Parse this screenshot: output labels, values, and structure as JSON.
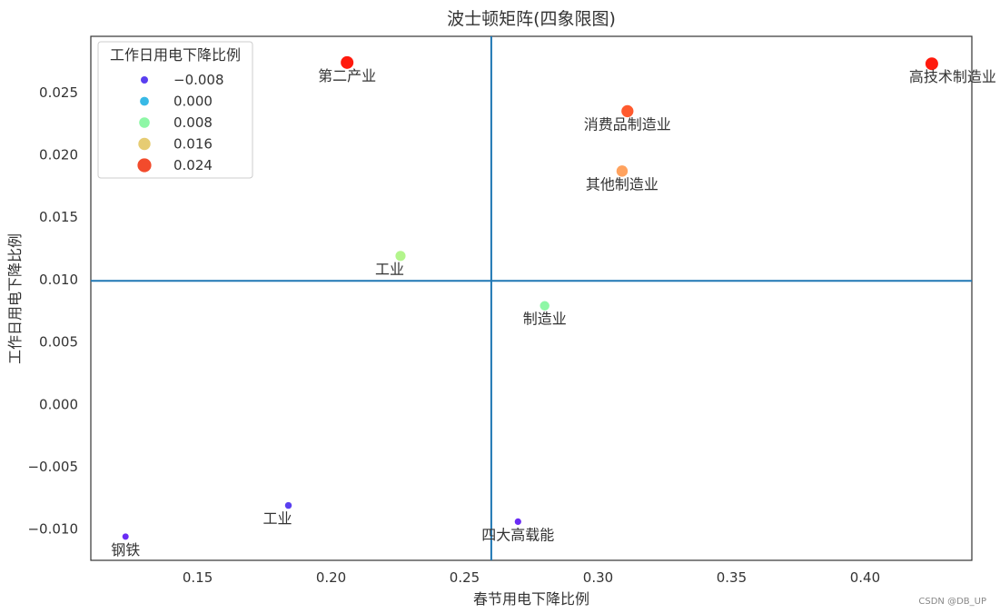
{
  "chart_data": {
    "type": "scatter",
    "title": "波士顿矩阵(四象限图)",
    "xlabel": "春节用电下降比例",
    "ylabel": "工作日用电下降比例",
    "xlim": [
      0.11,
      0.44
    ],
    "ylim": [
      -0.0125,
      0.0295
    ],
    "xticks": [
      0.15,
      0.2,
      0.25,
      0.3,
      0.35,
      0.4
    ],
    "xtick_labels": [
      "0.15",
      "0.20",
      "0.25",
      "0.30",
      "0.35",
      "0.40"
    ],
    "yticks": [
      -0.01,
      -0.005,
      0.0,
      0.005,
      0.01,
      0.015,
      0.02,
      0.025
    ],
    "ytick_labels": [
      "−0.010",
      "−0.005",
      "0.000",
      "0.005",
      "0.010",
      "0.015",
      "0.020",
      "0.025"
    ],
    "grid": false,
    "vline_x": 0.26,
    "hline_y": 0.0099,
    "line_color": "#1f77b4",
    "colormap": "rainbow",
    "hue_range": [
      -0.0106,
      0.0274
    ],
    "legend": {
      "title": "工作日用电下降比例",
      "placement": "top-left",
      "entries": [
        {
          "label": "−0.008",
          "value": -0.008,
          "color": "#5a3ff0"
        },
        {
          "label": "0.000",
          "value": 0.0,
          "color": "#38b9e6"
        },
        {
          "label": "0.008",
          "value": 0.008,
          "color": "#8ef7a6"
        },
        {
          "label": "0.016",
          "value": 0.016,
          "color": "#e6cc73"
        },
        {
          "label": "0.024",
          "value": 0.024,
          "color": "#f24b2c"
        }
      ]
    },
    "points": [
      {
        "label": "第二产业",
        "x": 0.206,
        "y": 0.0274,
        "color": "#ff1a0d",
        "label_pos": "below"
      },
      {
        "label": "高技术制造业",
        "x": 0.425,
        "y": 0.0273,
        "color": "#ff1a0d",
        "label_pos": "below-right"
      },
      {
        "label": "消费品制造业",
        "x": 0.311,
        "y": 0.0235,
        "color": "#ff5a2e",
        "label_pos": "below"
      },
      {
        "label": "其他制造业",
        "x": 0.309,
        "y": 0.0187,
        "color": "#ffa25e",
        "label_pos": "below"
      },
      {
        "label": "工业",
        "x": 0.226,
        "y": 0.0119,
        "color": "#b3f58c",
        "label_pos": "below-left"
      },
      {
        "label": "制造业",
        "x": 0.28,
        "y": 0.0079,
        "color": "#8ef7a6",
        "label_pos": "below"
      },
      {
        "label": "工业",
        "x": 0.184,
        "y": -0.0081,
        "color": "#5a3ff0",
        "label_pos": "below-left"
      },
      {
        "label": "钢铁",
        "x": 0.123,
        "y": -0.0106,
        "color": "#6a2cf5",
        "label_pos": "below"
      },
      {
        "label": "四大高载能",
        "x": 0.27,
        "y": -0.0094,
        "color": "#6a2cf5",
        "label_pos": "below"
      }
    ]
  },
  "watermark": "CSDN @DB_UP"
}
